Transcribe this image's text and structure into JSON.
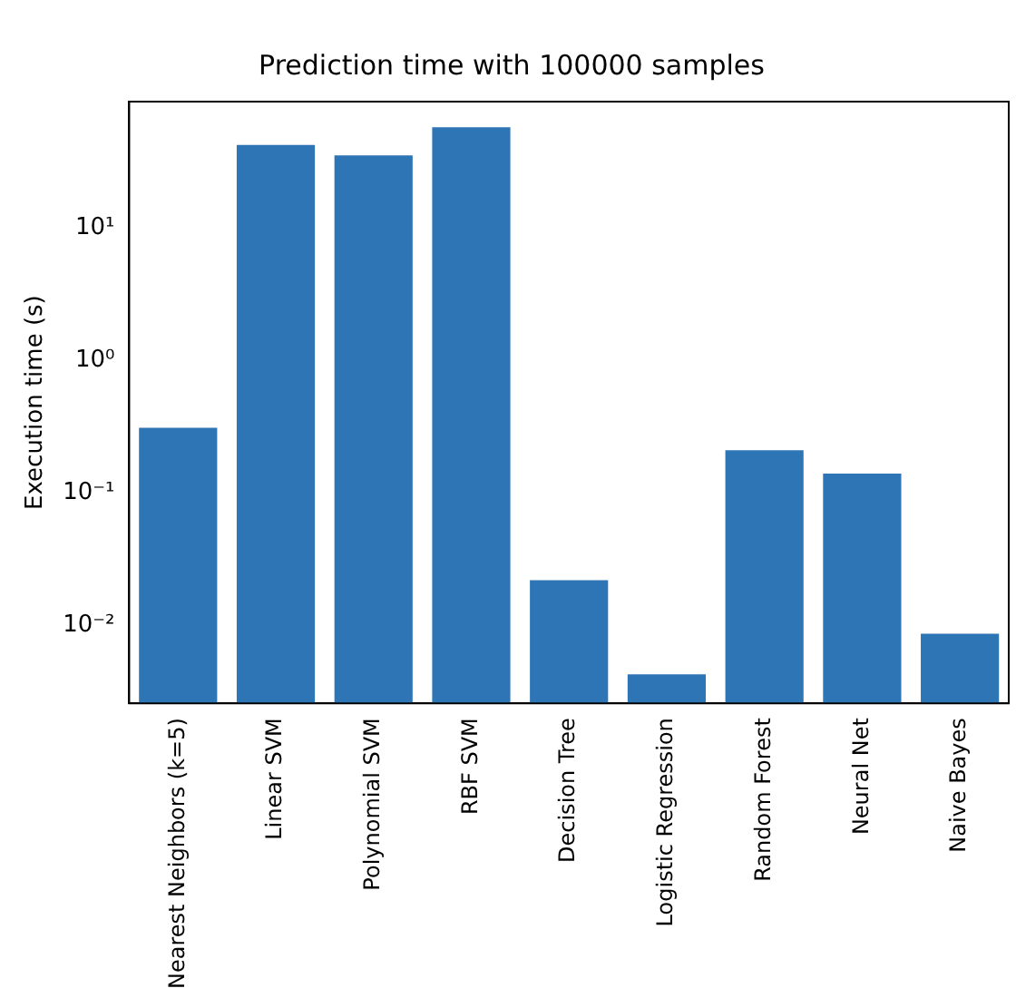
{
  "chart_data": {
    "type": "bar",
    "title": "Prediction time with 100000 samples",
    "ylabel": "Execution time (s)",
    "categories": [
      "Nearest Neighbors (k=5)",
      "Linear SVM",
      "Polynomial SVM",
      "RBF SVM",
      "Decision Tree",
      "Logistic Regression",
      "Random Forest",
      "Neural Net",
      "Naive Bayes"
    ],
    "values": [
      0.31,
      42,
      35,
      57,
      0.022,
      0.0043,
      0.21,
      0.14,
      0.0087
    ],
    "color": "#2e75b6",
    "log": "y",
    "ylim": [
      0.0026,
      89
    ],
    "yticks": [
      {
        "value": 0.01,
        "label": "10⁻²"
      },
      {
        "value": 0.1,
        "label": "10⁻¹"
      },
      {
        "value": 1,
        "label": "10⁰"
      },
      {
        "value": 10,
        "label": "10¹"
      }
    ],
    "grid": false,
    "legend": false
  }
}
